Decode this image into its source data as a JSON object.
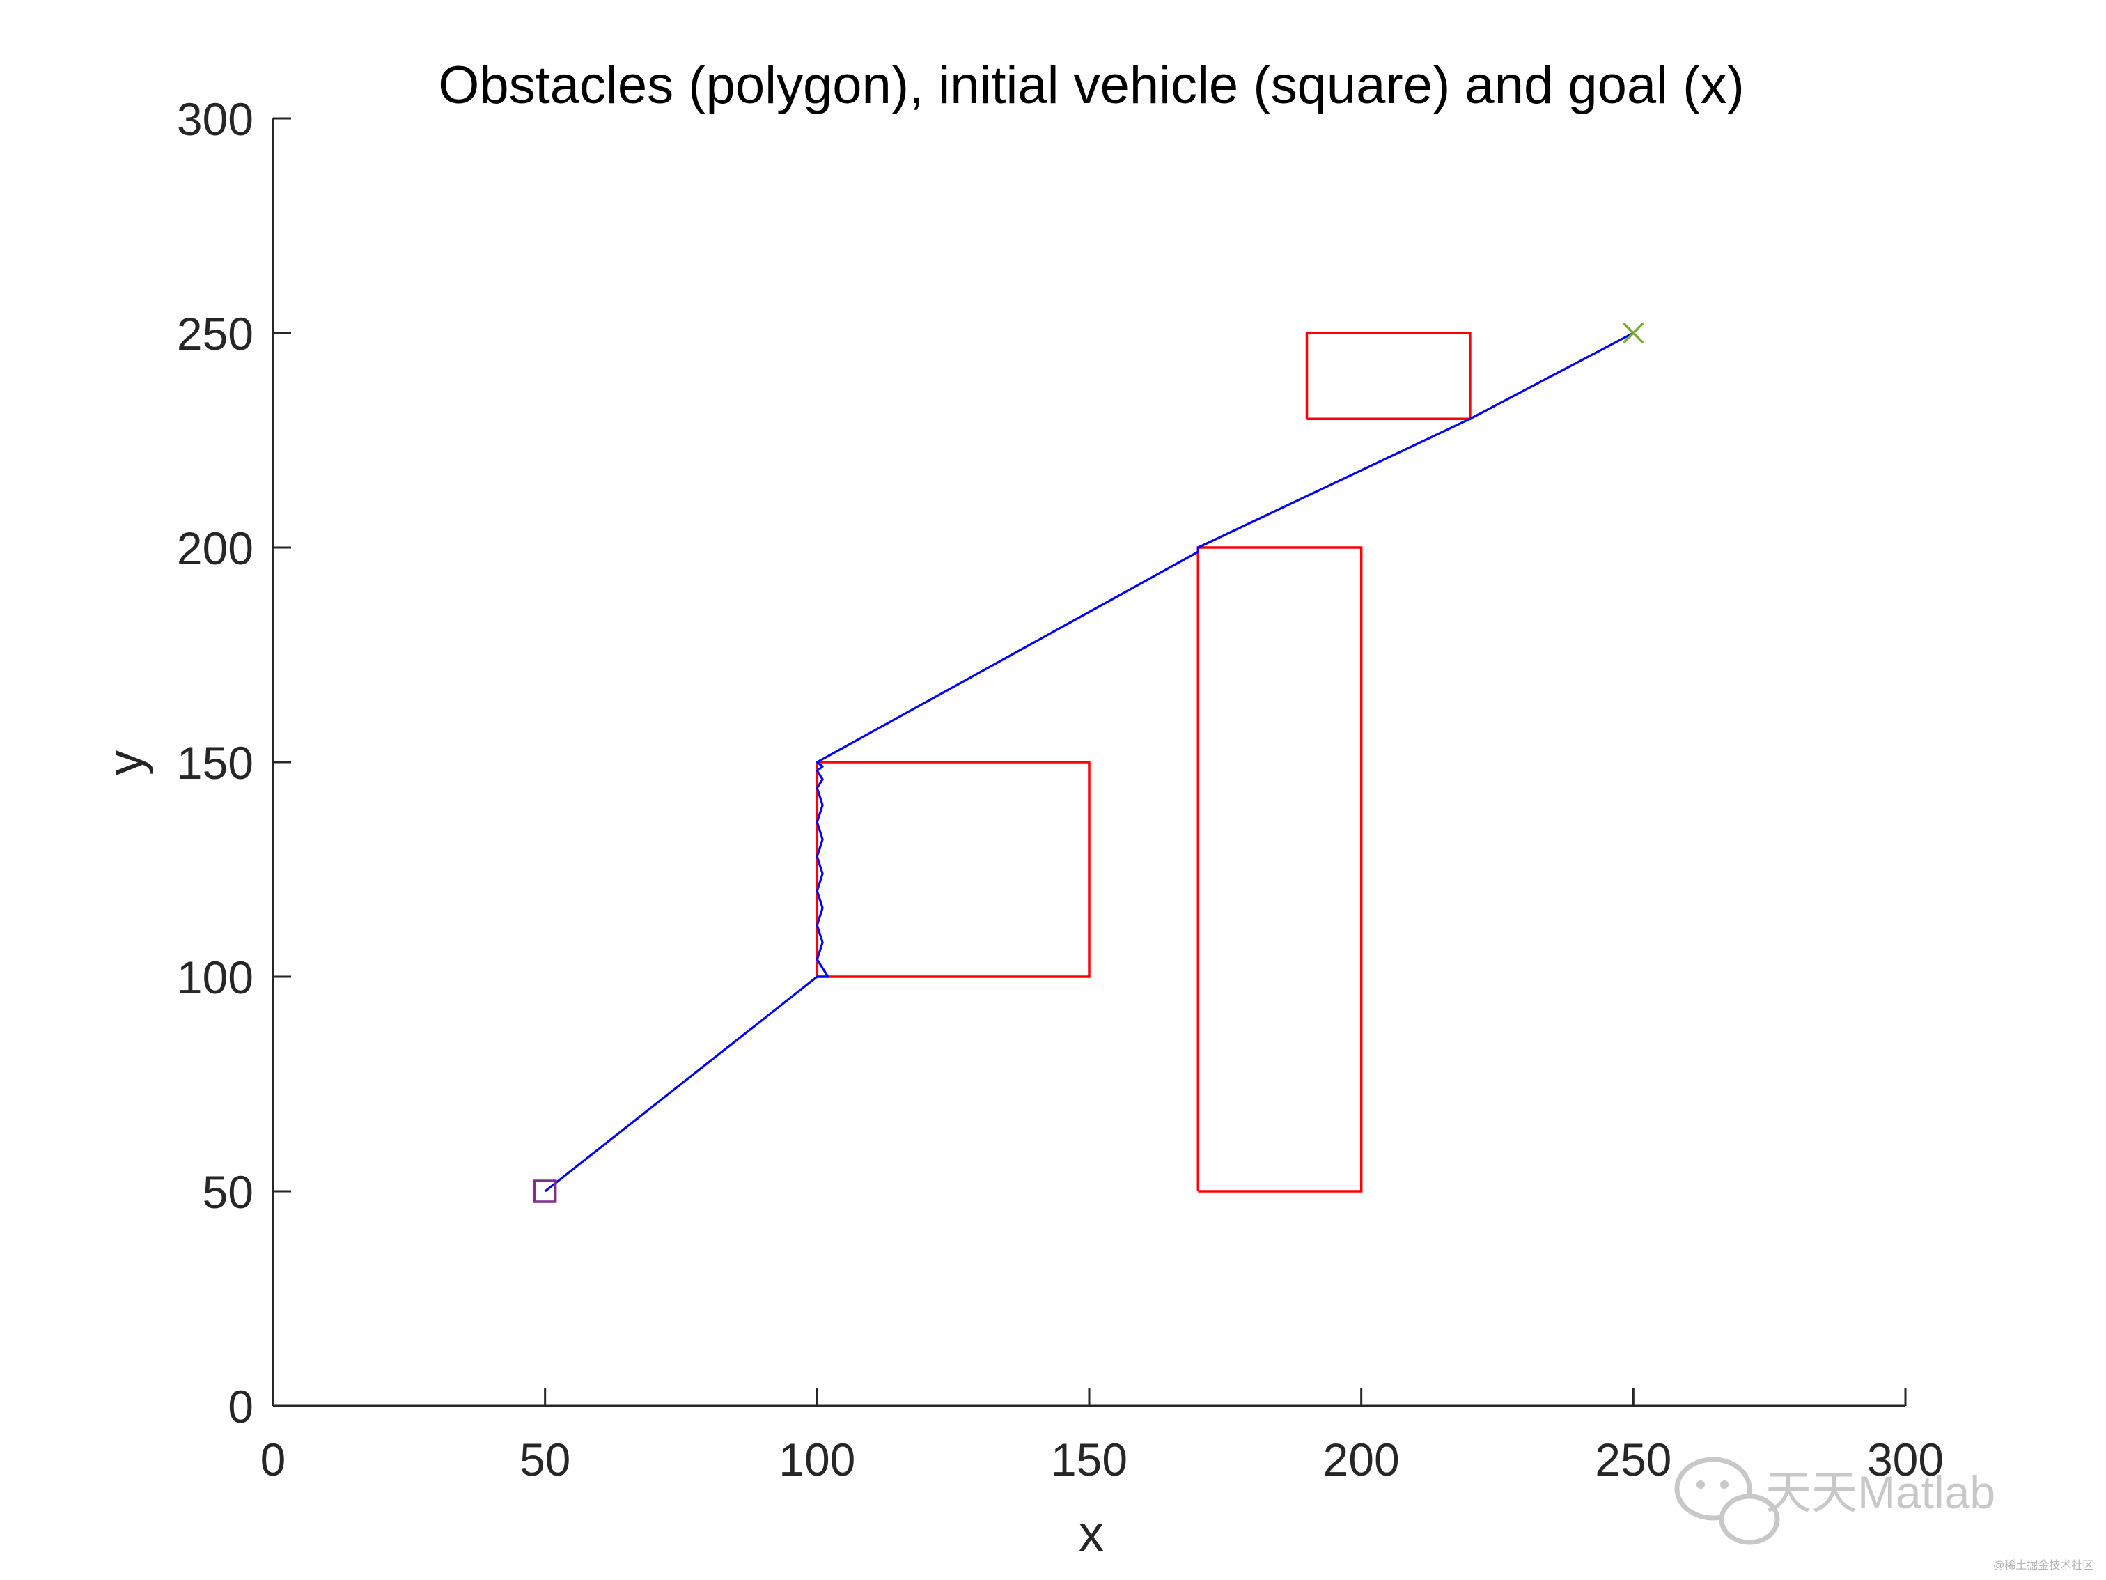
{
  "chart_data": {
    "type": "line",
    "title": "Obstacles (polygon), initial vehicle (square) and goal (x)",
    "xlabel": "x",
    "ylabel": "y",
    "xlim": [
      0,
      300
    ],
    "ylim": [
      0,
      300
    ],
    "xticks": [
      0,
      50,
      100,
      150,
      200,
      250,
      300
    ],
    "yticks": [
      0,
      50,
      100,
      150,
      200,
      250,
      300
    ],
    "grid": false,
    "obstacles": [
      {
        "x": [
          100,
          150,
          150,
          100,
          100
        ],
        "y": [
          100,
          100,
          150,
          150,
          100
        ]
      },
      {
        "x": [
          170,
          200,
          200,
          170,
          170
        ],
        "y": [
          50,
          50,
          200,
          200,
          50
        ]
      },
      {
        "x": [
          190,
          220,
          220,
          190,
          190
        ],
        "y": [
          230,
          230,
          250,
          250,
          230
        ]
      }
    ],
    "path": {
      "x": [
        50,
        100,
        102,
        100,
        101,
        100,
        101,
        100,
        101,
        100,
        101,
        100,
        101,
        100,
        101,
        100,
        101,
        100,
        170,
        170,
        220,
        250
      ],
      "y": [
        50,
        100,
        100,
        104,
        108,
        112,
        116,
        120,
        124,
        128,
        132,
        136,
        140,
        144,
        146,
        148,
        149,
        150,
        199,
        200,
        230,
        250
      ]
    },
    "start": {
      "x": 50,
      "y": 50
    },
    "goal": {
      "x": 250,
      "y": 250
    },
    "colors": {
      "obstacle": "#ff0000",
      "path": "#0000ff",
      "start": "#7e2f8e",
      "goal": "#77ac30",
      "axis": "#262626"
    }
  },
  "watermark": {
    "text": "天天Matlab",
    "small_text": "@稀土掘金技术社区",
    "icon": "wechat-icon"
  }
}
